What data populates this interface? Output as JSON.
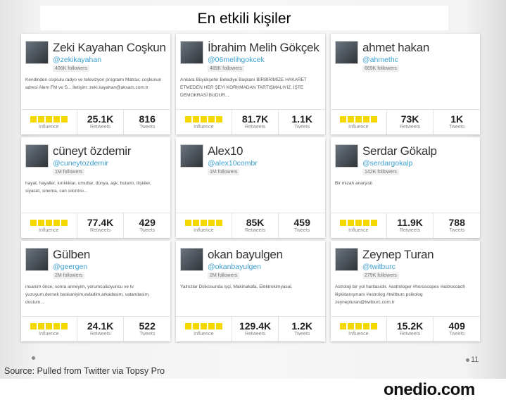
{
  "title": "En etkili kişiler",
  "labels": {
    "influence": "Influence",
    "retweets": "Retweets",
    "tweets": "Tweets"
  },
  "accent_color": "#f5d800",
  "cards": [
    {
      "name": "Zeki Kayahan Coşkun",
      "handle": "@zekikayahan",
      "followers": "406K followers",
      "bio": "Kendinden coşkulu radyo ve televizyon programı Matrax; coşkunun adresi Alem FM ve S... İletişim: zeki.kayahan@aksam.com.tr",
      "influence": 5,
      "retweets": "25.1K",
      "tweets": "816"
    },
    {
      "name": "İbrahim Melih Gökçek",
      "handle": "@06melihgokcek",
      "followers": "489K followers",
      "bio": "Ankara Büyükşehir Belediye Başkanı BİRBİRİMİZE HAKARET ETMEDEN HER ŞEYİ KORKMADAN TARTIŞMALIYIZ. İŞTE DEMOKRASİ BUDUR...",
      "influence": 5,
      "retweets": "81.7K",
      "tweets": "1.1K"
    },
    {
      "name": "ahmet hakan",
      "handle": "@ahmethc",
      "followers": "669K followers",
      "bio": "",
      "influence": 5,
      "retweets": "73K",
      "tweets": "1K"
    },
    {
      "name": "cüneyt özdemir",
      "handle": "@cuneytozdemir",
      "followers": "1M followers",
      "bio": "hayat, hayaller, kırıklıklar, umutlar, dünya, aşk, bulantı, ilişkiler, siyaset, sinema, can sıkıntısı...",
      "influence": 5,
      "retweets": "77.4K",
      "tweets": "429"
    },
    {
      "name": "Alex10",
      "handle": "@alex10combr",
      "followers": "1M followers",
      "bio": "",
      "influence": 5,
      "retweets": "85K",
      "tweets": "459"
    },
    {
      "name": "Serdar Gökalp",
      "handle": "@serdargokalp",
      "followers": "142K followers",
      "bio": "Bir mizah anarşisti",
      "influence": 5,
      "retweets": "11.9K",
      "tweets": "788"
    },
    {
      "name": "Gülben",
      "handle": "@geergen",
      "followers": "2M followers",
      "bio": "insanim önce, sonra anneyim, yorumcu&oyuncu ve tv yuzuyum,dernek baskaniyim,evladim,arkadasim, vatandasim, dostum...",
      "influence": 5,
      "retweets": "24.1K",
      "tweets": "522"
    },
    {
      "name": "okan bayulgen",
      "handle": "@okanbayulgen",
      "followers": "2M followers",
      "bio": "Yalnızlar Diskosunda işçi, Makinakafa, Elektrokimyasal.",
      "influence": 5,
      "retweets": "129.4K",
      "tweets": "1.2K"
    },
    {
      "name": "Zeynep Turan",
      "handle": "@twitburc",
      "followers": "279K followers",
      "bio": "Astroloji bir yol haritasıdır. #astrologer #horoscopes #astrocoach ilişkidanışmanı #astrolog #twitburc psikolog zeynepturan@twitburc.com.tr",
      "influence": 5,
      "retweets": "15.2K",
      "tweets": "409"
    }
  ],
  "source": "Source: Pulled from Twitter via Topsy Pro",
  "page_number": "11",
  "logo": "onedio.com"
}
